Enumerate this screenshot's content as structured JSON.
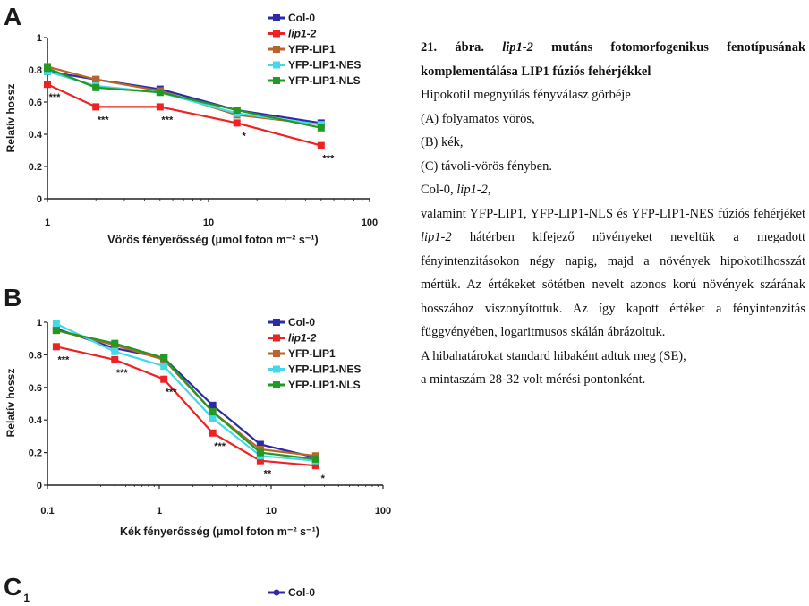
{
  "chart_data": [
    {
      "panel": "A",
      "type": "line",
      "xscale": "log",
      "x": [
        1,
        2,
        5,
        15,
        50
      ],
      "xticks": [
        "1",
        "10",
        "100"
      ],
      "yticks": [
        "0",
        "0.2",
        "0.4",
        "0.6",
        "0.8",
        "1"
      ],
      "xlim": [
        1,
        100
      ],
      "ylim": [
        0,
        1
      ],
      "ylabel": "Relatív hossz",
      "xlabel": "Vörös fényerősség (μmol foton m⁻² s⁻¹)",
      "series": [
        {
          "name": "Col-0",
          "color": "#2b2baa",
          "values": [
            0.79,
            0.74,
            0.68,
            0.55,
            0.47
          ]
        },
        {
          "name": "lip1-2",
          "color": "#ee2222",
          "values": [
            0.71,
            0.57,
            0.57,
            0.47,
            0.33
          ]
        },
        {
          "name": "YFP-LIP1",
          "color": "#b8642a",
          "values": [
            0.82,
            0.74,
            0.67,
            0.52,
            0.46
          ]
        },
        {
          "name": "YFP-LIP1-NES",
          "color": "#44d8e8",
          "values": [
            0.79,
            0.7,
            0.66,
            0.53,
            0.46
          ]
        },
        {
          "name": "YFP-LIP1-NLS",
          "color": "#229922",
          "values": [
            0.81,
            0.69,
            0.66,
            0.55,
            0.44
          ]
        }
      ],
      "annotations": [
        {
          "x": 1,
          "text": "***"
        },
        {
          "x": 2,
          "text": "***"
        },
        {
          "x": 5,
          "text": "***"
        },
        {
          "x": 15,
          "text": "*"
        },
        {
          "x": 50,
          "text": "***"
        }
      ]
    },
    {
      "panel": "B",
      "type": "line",
      "xscale": "log",
      "x": [
        0.12,
        0.4,
        1.1,
        3,
        8,
        25
      ],
      "xticks": [
        "0.1",
        "1",
        "10",
        "100"
      ],
      "yticks": [
        "0",
        "0.2",
        "0.4",
        "0.6",
        "0.8",
        "1"
      ],
      "xlim": [
        0.1,
        100
      ],
      "ylim": [
        0,
        1
      ],
      "ylabel": "Relatív hossz",
      "xlabel": "Kék fényerősség (μmol foton m⁻² s⁻¹)",
      "series": [
        {
          "name": "Col-0",
          "color": "#2b2baa",
          "values": [
            0.96,
            0.84,
            0.78,
            0.49,
            0.25,
            0.17
          ]
        },
        {
          "name": "lip1-2",
          "color": "#ee2222",
          "values": [
            0.85,
            0.77,
            0.65,
            0.32,
            0.15,
            0.12
          ]
        },
        {
          "name": "YFP-LIP1",
          "color": "#b8642a",
          "values": [
            0.95,
            0.86,
            0.77,
            0.45,
            0.22,
            0.18
          ]
        },
        {
          "name": "YFP-LIP1-NES",
          "color": "#44d8e8",
          "values": [
            0.99,
            0.82,
            0.73,
            0.41,
            0.18,
            0.15
          ]
        },
        {
          "name": "YFP-LIP1-NLS",
          "color": "#229922",
          "values": [
            0.95,
            0.87,
            0.78,
            0.45,
            0.2,
            0.16
          ]
        }
      ],
      "annotations": [
        {
          "x": 0.12,
          "text": "***"
        },
        {
          "x": 0.4,
          "text": "***"
        },
        {
          "x": 1.1,
          "text": "***"
        },
        {
          "x": 3,
          "text": "***"
        },
        {
          "x": 8,
          "text": "**"
        },
        {
          "x": 25,
          "text": "*"
        }
      ]
    },
    {
      "panel": "C",
      "type": "line",
      "yticks": [
        "1"
      ],
      "series": [
        {
          "name": "Col-0",
          "color": "#2b2baa",
          "values": []
        }
      ]
    }
  ],
  "caption": {
    "figure_no": "21. ábra.",
    "gene": "lip1-2",
    "title_rest": " mutáns fotomorfogenikus fenotípusának komplementálása LIP1 fúziós fehérjékkel",
    "line1": "Hipokotil megnyúlás fényválasz görbéje",
    "line2": "(A) folyamatos vörös,",
    "line3": "(B) kék,",
    "line4": "(C) távoli-vörös fényben.",
    "line5_pre": "Col-0, ",
    "line5_gene": "lip1-2",
    "line5_post": ",",
    "line6_pre": "valamint YFP-LIP1, YFP-LIP1-NLS és YFP-LIP1-NES fúziós fehérjéket ",
    "line6_gene": "lip1-2",
    "line6_post": " hátérben kifejező növényeket neveltük a megadott fényintenzitásokon négy napig, majd a növények hipokotilhosszát mértük. Az értékeket sötétben nevelt azonos korú növények szárának hosszához viszonyítottuk. Az így kapott értéket a fényintenzitás függvényében, logaritmusos skálán ábrázoltuk.",
    "line7": "A hibahatárokat standard hibaként adtuk meg (SE),",
    "line8": "a mintaszám 28-32 volt mérési pontonként."
  }
}
